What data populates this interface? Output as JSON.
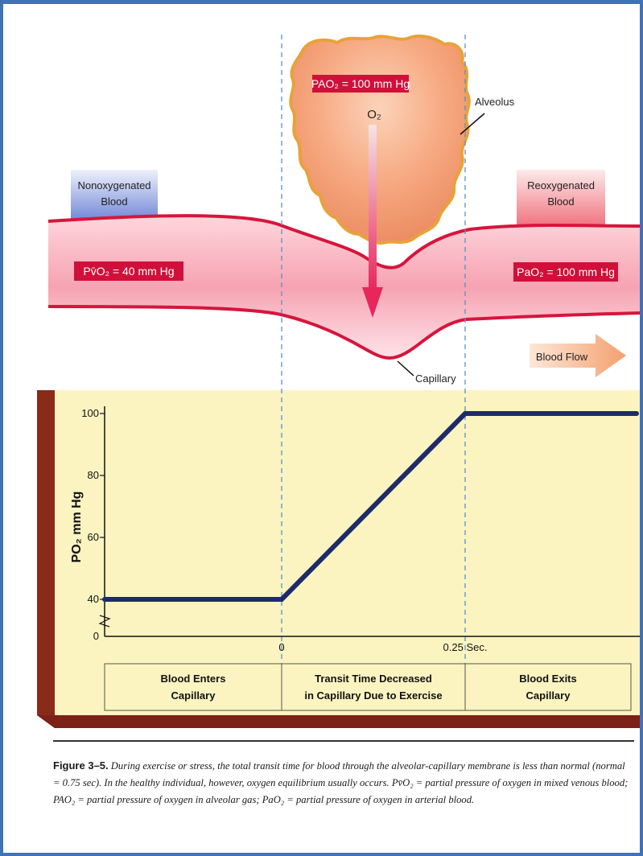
{
  "top_diagram": {
    "alveolus_pressure": "PAO₂ = 100 mm Hg",
    "alveolus_gas": "O₂",
    "alveolus_label": "Alveolus",
    "nonoxygenated_line1": "Nonoxygenated",
    "nonoxygenated_line2": "Blood",
    "reoxygenated_line1": "Reoxygenated",
    "reoxygenated_line2": "Blood",
    "venous_pressure": "Pv̄O₂ = 40 mm Hg",
    "arterial_pressure": "PaO₂ = 100 mm Hg",
    "capillary_label": "Capillary",
    "flow_label": "Blood Flow"
  },
  "chart_data": {
    "type": "line",
    "ylabel": "PO₂ mm Hg",
    "yticks": [
      "0",
      "40",
      "60",
      "80",
      "100"
    ],
    "xticks": [
      "0",
      "0.25 Sec."
    ],
    "series": [
      {
        "x": [
          "start",
          0,
          0.25,
          "end"
        ],
        "values": [
          40,
          40,
          100,
          100
        ]
      }
    ],
    "ylim": [
      0,
      100
    ],
    "grid": false
  },
  "phases": [
    {
      "line1": "Blood Enters",
      "line2": "Capillary"
    },
    {
      "line1": "Transit Time Decreased",
      "line2": "in Capillary Due to Exercise"
    },
    {
      "line1": "Blood Exits",
      "line2": "Capillary"
    }
  ],
  "caption": {
    "figure": "Figure 3–5.",
    "text": "During exercise or stress, the total transit time for blood through the alveolar-capillary membrane is less than normal (normal = 0.75 sec). In the healthy individual, however, oxygen equilibrium usually occurs. Pv̄O₂ = partial pressure of oxygen in mixed venous blood; PAO₂ = partial pressure of oxygen in alveolar gas; PaO₂ = partial pressure of oxygen in arterial blood."
  },
  "colors": {
    "frame": "#3f72b8",
    "vessel": "#f6a4b1",
    "vessel_edge": "#d7153c",
    "alveolus": "#f8b088",
    "chart_bg": "#fbf4c0",
    "chart_line": "#1d2b6b",
    "chart_base": "#7d2016",
    "label_red": "#d0103a"
  }
}
